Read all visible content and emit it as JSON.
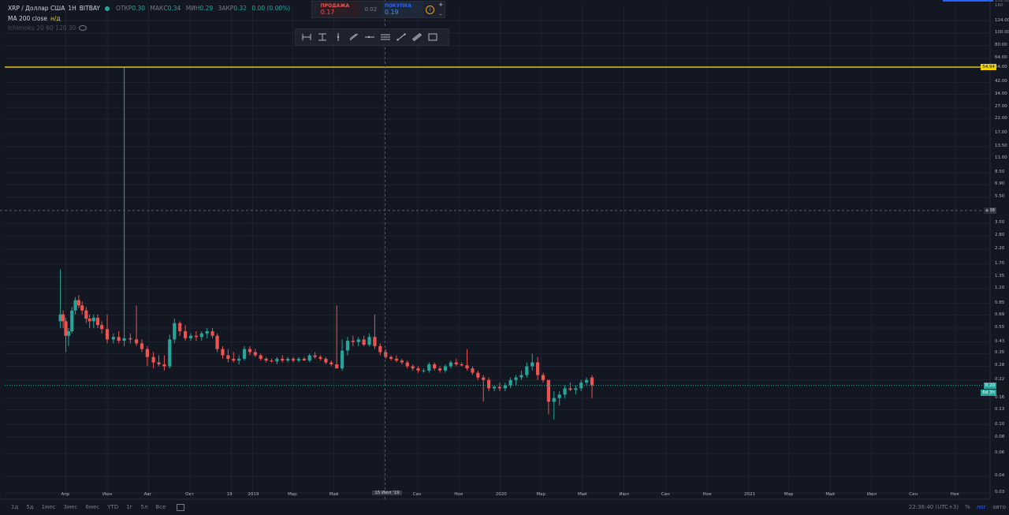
{
  "legend": {
    "symbol": "XRP / Доллар США",
    "interval": "1H",
    "exchange": "BITBAY",
    "open_label": "ОТКР",
    "open": "0.30",
    "high_label": "МАКС",
    "high": "0.34",
    "low_label": "МИН",
    "low": "0.29",
    "close_label": "ЗАКР",
    "close": "0.32",
    "change": "0.00 (0.00%)",
    "ma_label": "MA 200 close",
    "ma_value": "н/д",
    "ichimoku_label": "Ichimoku 20 60 120 30"
  },
  "trade": {
    "sell_label": "ПРОДАЖА",
    "sell_price": "0.17",
    "spread": "0.02",
    "buy_label": "ПОКУПКА",
    "buy_price": "0.19",
    "info_glyph": "i",
    "plus": "+",
    "minus": "–"
  },
  "toolbar_icons": [
    "date-range-icon",
    "price-range-icon",
    "vertical-line-icon",
    "trend-angle-icon",
    "horizontal-ray-icon",
    "parallel-lines-icon",
    "trend-line-icon",
    "pitchfork-icon",
    "rectangle-icon"
  ],
  "price_axis": {
    "top_partial": [
      "152.00",
      "160"
    ],
    "tick_labels": [
      "124.00",
      "100.00",
      "80.00",
      "64.00",
      "54.00",
      "42.00",
      "34.00",
      "27.00",
      "22.00",
      "17.00",
      "13.50",
      "11.00",
      "8.50",
      "6.90",
      "5.50",
      "3.50",
      "2.80",
      "2.20",
      "1.70",
      "1.35",
      "1.10",
      "0.85",
      "0.69",
      "0.55",
      "0.43",
      "0.35",
      "0.28",
      "0.22",
      "0.16",
      "0.13",
      "0.10",
      "0.08",
      "0.06",
      "0.04",
      "0.03"
    ],
    "crosshair_price": "4.38",
    "hline_price": "54.94",
    "last_price": "0.20",
    "countdown": "6d 3h"
  },
  "time_axis": {
    "labels": [
      "Апр",
      "Июн",
      "Авг",
      "Окт",
      "19",
      "2019",
      "Мар",
      "Май",
      "Сен",
      "Ноя",
      "2020",
      "Мар",
      "Май",
      "Июл",
      "Сен",
      "Ноя",
      "2021",
      "Мар",
      "Май",
      "Июл",
      "Сен",
      "Ноя"
    ],
    "crosshair_date": "15 Июл '19"
  },
  "bottom": {
    "ranges": [
      "1д",
      "5д",
      "1мес",
      "3мес",
      "6мес",
      "YTD",
      "1г",
      "5л",
      "Все"
    ],
    "time": "22:36:40 (UTC+3)",
    "percent": "%",
    "log": "лог",
    "auto": "авто"
  },
  "colors": {
    "background": "#131722",
    "up": "#26a69a",
    "down": "#ef5350",
    "hline": "#f0d000",
    "grid": "#1f2430"
  },
  "chart_data": {
    "type": "candlestick",
    "title": "XRP / Доллар США",
    "y_scale": "log",
    "series": [
      {
        "date": "2018-03-24",
        "open": 0.62,
        "high": 1.55,
        "low": 0.55,
        "close": 0.7
      },
      {
        "date": "2018-03-28",
        "open": 0.7,
        "high": 0.75,
        "low": 0.55,
        "close": 0.62
      },
      {
        "date": "2018-04-01",
        "open": 0.62,
        "high": 0.66,
        "low": 0.36,
        "close": 0.48
      },
      {
        "date": "2018-04-05",
        "open": 0.48,
        "high": 0.55,
        "low": 0.4,
        "close": 0.52
      },
      {
        "date": "2018-04-10",
        "open": 0.52,
        "high": 0.8,
        "low": 0.5,
        "close": 0.75
      },
      {
        "date": "2018-04-15",
        "open": 0.75,
        "high": 0.95,
        "low": 0.7,
        "close": 0.9
      },
      {
        "date": "2018-04-20",
        "open": 0.9,
        "high": 0.98,
        "low": 0.78,
        "close": 0.82
      },
      {
        "date": "2018-04-25",
        "open": 0.82,
        "high": 0.88,
        "low": 0.7,
        "close": 0.75
      },
      {
        "date": "2018-05-01",
        "open": 0.75,
        "high": 0.8,
        "low": 0.6,
        "close": 0.65
      },
      {
        "date": "2018-05-06",
        "open": 0.65,
        "high": 0.7,
        "low": 0.55,
        "close": 0.62
      },
      {
        "date": "2018-05-12",
        "open": 0.62,
        "high": 0.7,
        "low": 0.55,
        "close": 0.66
      },
      {
        "date": "2018-05-18",
        "open": 0.66,
        "high": 0.7,
        "low": 0.55,
        "close": 0.58
      },
      {
        "date": "2018-05-24",
        "open": 0.58,
        "high": 0.62,
        "low": 0.5,
        "close": 0.54
      },
      {
        "date": "2018-06-01",
        "open": 0.54,
        "high": 0.7,
        "low": 0.42,
        "close": 0.45
      },
      {
        "date": "2018-06-10",
        "open": 0.45,
        "high": 0.5,
        "low": 0.42,
        "close": 0.47
      },
      {
        "date": "2018-06-18",
        "open": 0.47,
        "high": 0.52,
        "low": 0.42,
        "close": 0.44
      },
      {
        "date": "2018-06-26",
        "open": 0.44,
        "high": 54.94,
        "low": 0.4,
        "close": 0.46
      },
      {
        "date": "2018-07-05",
        "open": 0.46,
        "high": 0.5,
        "low": 0.42,
        "close": 0.45
      },
      {
        "date": "2018-07-14",
        "open": 0.45,
        "high": 0.82,
        "low": 0.4,
        "close": 0.42
      },
      {
        "date": "2018-07-22",
        "open": 0.42,
        "high": 0.45,
        "low": 0.36,
        "close": 0.38
      },
      {
        "date": "2018-07-30",
        "open": 0.38,
        "high": 0.4,
        "low": 0.28,
        "close": 0.33
      },
      {
        "date": "2018-08-08",
        "open": 0.33,
        "high": 0.36,
        "low": 0.27,
        "close": 0.3
      },
      {
        "date": "2018-08-16",
        "open": 0.3,
        "high": 0.34,
        "low": 0.28,
        "close": 0.29
      },
      {
        "date": "2018-08-24",
        "open": 0.29,
        "high": 0.34,
        "low": 0.26,
        "close": 0.28
      },
      {
        "date": "2018-09-01",
        "open": 0.28,
        "high": 0.49,
        "low": 0.27,
        "close": 0.45
      },
      {
        "date": "2018-09-08",
        "open": 0.45,
        "high": 0.65,
        "low": 0.42,
        "close": 0.6
      },
      {
        "date": "2018-09-16",
        "open": 0.6,
        "high": 0.62,
        "low": 0.48,
        "close": 0.52
      },
      {
        "date": "2018-09-24",
        "open": 0.52,
        "high": 0.58,
        "low": 0.44,
        "close": 0.46
      },
      {
        "date": "2018-10-02",
        "open": 0.46,
        "high": 0.5,
        "low": 0.44,
        "close": 0.48
      },
      {
        "date": "2018-10-10",
        "open": 0.48,
        "high": 0.52,
        "low": 0.44,
        "close": 0.47
      },
      {
        "date": "2018-10-18",
        "open": 0.47,
        "high": 0.52,
        "low": 0.44,
        "close": 0.5
      },
      {
        "date": "2018-10-26",
        "open": 0.5,
        "high": 0.55,
        "low": 0.46,
        "close": 0.52
      },
      {
        "date": "2018-11-03",
        "open": 0.52,
        "high": 0.55,
        "low": 0.46,
        "close": 0.48
      },
      {
        "date": "2018-11-10",
        "open": 0.48,
        "high": 0.5,
        "low": 0.36,
        "close": 0.38
      },
      {
        "date": "2018-11-18",
        "open": 0.38,
        "high": 0.4,
        "low": 0.32,
        "close": 0.34
      },
      {
        "date": "2018-11-26",
        "open": 0.34,
        "high": 0.38,
        "low": 0.3,
        "close": 0.32
      },
      {
        "date": "2018-12-04",
        "open": 0.32,
        "high": 0.36,
        "low": 0.3,
        "close": 0.31
      },
      {
        "date": "2018-12-12",
        "open": 0.31,
        "high": 0.34,
        "low": 0.29,
        "close": 0.32
      },
      {
        "date": "2018-12-20",
        "open": 0.32,
        "high": 0.4,
        "low": 0.31,
        "close": 0.38
      },
      {
        "date": "2018-12-28",
        "open": 0.38,
        "high": 0.4,
        "low": 0.34,
        "close": 0.36
      },
      {
        "date": "2019-01-05",
        "open": 0.36,
        "high": 0.38,
        "low": 0.33,
        "close": 0.34
      },
      {
        "date": "2019-01-13",
        "open": 0.34,
        "high": 0.35,
        "low": 0.31,
        "close": 0.32
      },
      {
        "date": "2019-01-21",
        "open": 0.32,
        "high": 0.33,
        "low": 0.3,
        "close": 0.31
      },
      {
        "date": "2019-01-29",
        "open": 0.31,
        "high": 0.32,
        "low": 0.3,
        "close": 0.305
      },
      {
        "date": "2019-02-06",
        "open": 0.305,
        "high": 0.33,
        "low": 0.29,
        "close": 0.32
      },
      {
        "date": "2019-02-14",
        "open": 0.32,
        "high": 0.34,
        "low": 0.3,
        "close": 0.31
      },
      {
        "date": "2019-02-22",
        "open": 0.31,
        "high": 0.33,
        "low": 0.3,
        "close": 0.32
      },
      {
        "date": "2019-03-02",
        "open": 0.32,
        "high": 0.33,
        "low": 0.3,
        "close": 0.31
      },
      {
        "date": "2019-03-10",
        "open": 0.31,
        "high": 0.33,
        "low": 0.3,
        "close": 0.32
      },
      {
        "date": "2019-03-18",
        "open": 0.32,
        "high": 0.33,
        "low": 0.31,
        "close": 0.31
      },
      {
        "date": "2019-03-26",
        "open": 0.31,
        "high": 0.35,
        "low": 0.3,
        "close": 0.34
      },
      {
        "date": "2019-04-03",
        "open": 0.34,
        "high": 0.36,
        "low": 0.32,
        "close": 0.33
      },
      {
        "date": "2019-04-11",
        "open": 0.33,
        "high": 0.34,
        "low": 0.31,
        "close": 0.32
      },
      {
        "date": "2019-04-19",
        "open": 0.32,
        "high": 0.33,
        "low": 0.29,
        "close": 0.3
      },
      {
        "date": "2019-04-27",
        "open": 0.3,
        "high": 0.31,
        "low": 0.28,
        "close": 0.29
      },
      {
        "date": "2019-05-05",
        "open": 0.29,
        "high": 0.82,
        "low": 0.28,
        "close": 0.27
      },
      {
        "date": "2019-05-13",
        "open": 0.27,
        "high": 0.45,
        "low": 0.26,
        "close": 0.37
      },
      {
        "date": "2019-05-21",
        "open": 0.37,
        "high": 0.47,
        "low": 0.34,
        "close": 0.44
      },
      {
        "date": "2019-05-29",
        "open": 0.44,
        "high": 0.48,
        "low": 0.4,
        "close": 0.43
      },
      {
        "date": "2019-06-06",
        "open": 0.43,
        "high": 0.47,
        "low": 0.4,
        "close": 0.45
      },
      {
        "date": "2019-06-14",
        "open": 0.45,
        "high": 0.48,
        "low": 0.4,
        "close": 0.41
      },
      {
        "date": "2019-06-22",
        "open": 0.41,
        "high": 0.5,
        "low": 0.4,
        "close": 0.47
      },
      {
        "date": "2019-06-30",
        "open": 0.47,
        "high": 0.7,
        "low": 0.38,
        "close": 0.4
      },
      {
        "date": "2019-07-08",
        "open": 0.4,
        "high": 0.42,
        "low": 0.34,
        "close": 0.36
      },
      {
        "date": "2019-07-16",
        "open": 0.36,
        "high": 0.38,
        "low": 0.32,
        "close": 0.33
      },
      {
        "date": "2019-07-24",
        "open": 0.33,
        "high": 0.34,
        "low": 0.31,
        "close": 0.32
      },
      {
        "date": "2019-08-01",
        "open": 0.32,
        "high": 0.34,
        "low": 0.3,
        "close": 0.31
      },
      {
        "date": "2019-08-09",
        "open": 0.31,
        "high": 0.32,
        "low": 0.29,
        "close": 0.3
      },
      {
        "date": "2019-08-17",
        "open": 0.3,
        "high": 0.31,
        "low": 0.27,
        "close": 0.28
      },
      {
        "date": "2019-08-25",
        "open": 0.28,
        "high": 0.29,
        "low": 0.26,
        "close": 0.27
      },
      {
        "date": "2019-09-02",
        "open": 0.27,
        "high": 0.28,
        "low": 0.25,
        "close": 0.26
      },
      {
        "date": "2019-09-10",
        "open": 0.26,
        "high": 0.27,
        "low": 0.25,
        "close": 0.26
      },
      {
        "date": "2019-09-18",
        "open": 0.26,
        "high": 0.3,
        "low": 0.25,
        "close": 0.29
      },
      {
        "date": "2019-09-26",
        "open": 0.29,
        "high": 0.3,
        "low": 0.26,
        "close": 0.27
      },
      {
        "date": "2019-10-04",
        "open": 0.27,
        "high": 0.28,
        "low": 0.25,
        "close": 0.26
      },
      {
        "date": "2019-10-12",
        "open": 0.26,
        "high": 0.29,
        "low": 0.25,
        "close": 0.28
      },
      {
        "date": "2019-10-20",
        "open": 0.28,
        "high": 0.31,
        "low": 0.27,
        "close": 0.3
      },
      {
        "date": "2019-10-28",
        "open": 0.3,
        "high": 0.32,
        "low": 0.28,
        "close": 0.29
      },
      {
        "date": "2019-11-05",
        "open": 0.29,
        "high": 0.3,
        "low": 0.28,
        "close": 0.285
      },
      {
        "date": "2019-11-13",
        "open": 0.285,
        "high": 0.38,
        "low": 0.26,
        "close": 0.27
      },
      {
        "date": "2019-11-21",
        "open": 0.27,
        "high": 0.28,
        "low": 0.24,
        "close": 0.25
      },
      {
        "date": "2019-11-29",
        "open": 0.25,
        "high": 0.26,
        "low": 0.22,
        "close": 0.23
      },
      {
        "date": "2019-12-07",
        "open": 0.23,
        "high": 0.24,
        "low": 0.15,
        "close": 0.22
      },
      {
        "date": "2019-12-15",
        "open": 0.22,
        "high": 0.23,
        "low": 0.18,
        "close": 0.19
      },
      {
        "date": "2019-12-23",
        "open": 0.19,
        "high": 0.2,
        "low": 0.18,
        "close": 0.195
      },
      {
        "date": "2019-12-31",
        "open": 0.195,
        "high": 0.21,
        "low": 0.18,
        "close": 0.19
      },
      {
        "date": "2020-01-08",
        "open": 0.19,
        "high": 0.21,
        "low": 0.18,
        "close": 0.2
      },
      {
        "date": "2020-01-16",
        "open": 0.2,
        "high": 0.23,
        "low": 0.19,
        "close": 0.22
      },
      {
        "date": "2020-01-24",
        "open": 0.22,
        "high": 0.24,
        "low": 0.2,
        "close": 0.23
      },
      {
        "date": "2020-02-01",
        "open": 0.23,
        "high": 0.26,
        "low": 0.22,
        "close": 0.24
      },
      {
        "date": "2020-02-09",
        "open": 0.24,
        "high": 0.3,
        "low": 0.23,
        "close": 0.28
      },
      {
        "date": "2020-02-17",
        "open": 0.28,
        "high": 0.35,
        "low": 0.26,
        "close": 0.3
      },
      {
        "date": "2020-02-25",
        "open": 0.3,
        "high": 0.33,
        "low": 0.22,
        "close": 0.24
      },
      {
        "date": "2020-03-04",
        "open": 0.24,
        "high": 0.25,
        "low": 0.21,
        "close": 0.22
      },
      {
        "date": "2020-03-12",
        "open": 0.22,
        "high": 0.22,
        "low": 0.12,
        "close": 0.15
      },
      {
        "date": "2020-03-20",
        "open": 0.15,
        "high": 0.18,
        "low": 0.11,
        "close": 0.16
      },
      {
        "date": "2020-03-28",
        "open": 0.16,
        "high": 0.18,
        "low": 0.14,
        "close": 0.17
      },
      {
        "date": "2020-04-05",
        "open": 0.17,
        "high": 0.2,
        "low": 0.16,
        "close": 0.19
      },
      {
        "date": "2020-04-13",
        "open": 0.19,
        "high": 0.21,
        "low": 0.18,
        "close": 0.185
      },
      {
        "date": "2020-04-21",
        "open": 0.185,
        "high": 0.2,
        "low": 0.17,
        "close": 0.19
      },
      {
        "date": "2020-04-29",
        "open": 0.19,
        "high": 0.22,
        "low": 0.18,
        "close": 0.21
      },
      {
        "date": "2020-05-07",
        "open": 0.21,
        "high": 0.23,
        "low": 0.2,
        "close": 0.22
      },
      {
        "date": "2020-05-15",
        "open": 0.23,
        "high": 0.24,
        "low": 0.16,
        "close": 0.2
      }
    ],
    "horizontal_line": 54.94,
    "x_range": [
      "2018-01-01",
      "2021-12-20"
    ],
    "y_range": [
      0.028,
      165
    ]
  }
}
